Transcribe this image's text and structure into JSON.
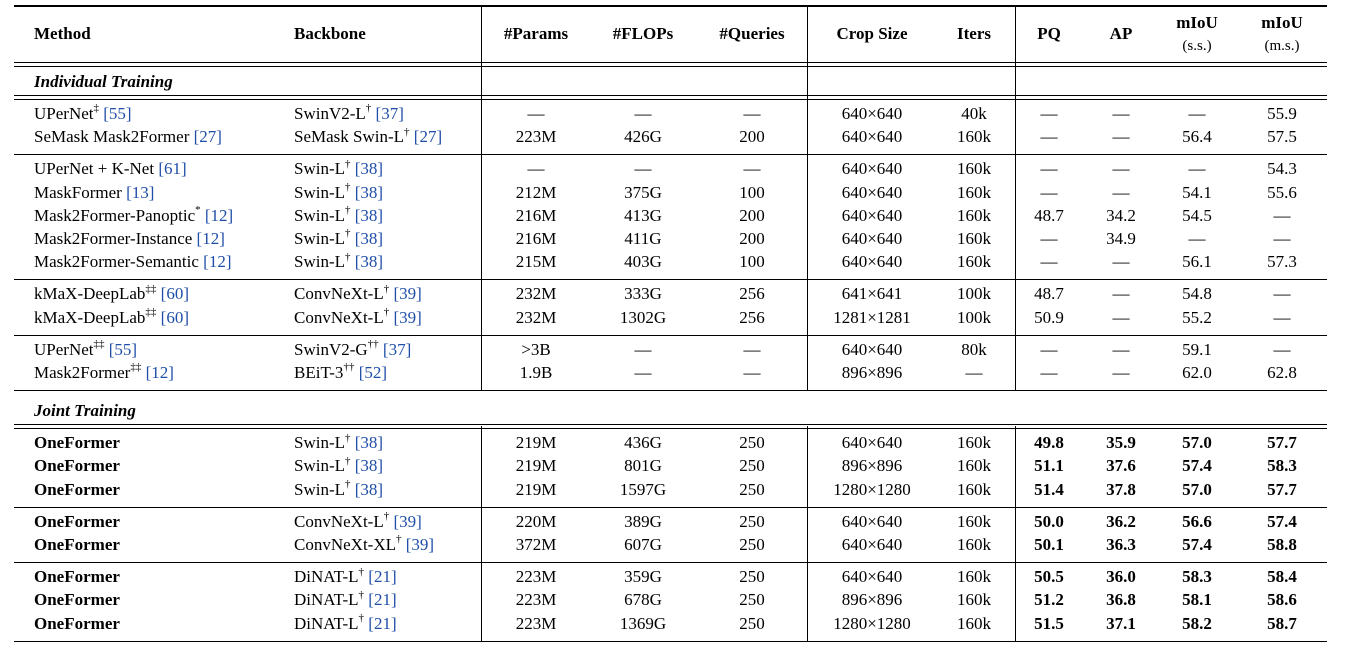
{
  "header": {
    "method": "Method",
    "backbone": "Backbone",
    "params": "#Params",
    "flops": "#FLOPs",
    "queries": "#Queries",
    "crop": "Crop Size",
    "iters": "Iters",
    "pq": "PQ",
    "ap": "AP",
    "miou_ss": "mIoU",
    "miou_ss_sub": "(s.s.)",
    "miou_ms": "mIoU",
    "miou_ms_sub": "(m.s.)"
  },
  "sections": [
    {
      "title": "Individual Training",
      "groups": [
        [
          {
            "method": "UPerNet",
            "method_sup": "‡",
            "method_ref": "[55]",
            "backbone": "SwinV2-L",
            "backbone_sup": "†",
            "backbone_ref": "[37]",
            "params": "—",
            "flops": "—",
            "queries": "—",
            "crop": "640×640",
            "iters": "40k",
            "pq": "—",
            "ap": "—",
            "miou_ss": "—",
            "miou_ms": "55.9"
          },
          {
            "method": "SeMask Mask2Former",
            "method_sup": "",
            "method_ref": "[27]",
            "backbone": "SeMask Swin-L",
            "backbone_sup": "†",
            "backbone_ref": "[27]",
            "params": "223M",
            "flops": "426G",
            "queries": "200",
            "crop": "640×640",
            "iters": "160k",
            "pq": "—",
            "ap": "—",
            "miou_ss": "56.4",
            "miou_ms": "57.5"
          }
        ],
        [
          {
            "method": "UPerNet + K-Net",
            "method_sup": "",
            "method_ref": "[61]",
            "backbone": "Swin-L",
            "backbone_sup": "†",
            "backbone_ref": "[38]",
            "params": "—",
            "flops": "—",
            "queries": "—",
            "crop": "640×640",
            "iters": "160k",
            "pq": "—",
            "ap": "—",
            "miou_ss": "—",
            "miou_ms": "54.3"
          },
          {
            "method": "MaskFormer",
            "method_sup": "",
            "method_ref": "[13]",
            "backbone": "Swin-L",
            "backbone_sup": "†",
            "backbone_ref": "[38]",
            "params": "212M",
            "flops": "375G",
            "queries": "100",
            "crop": "640×640",
            "iters": "160k",
            "pq": "—",
            "ap": "—",
            "miou_ss": "54.1",
            "miou_ms": "55.6"
          },
          {
            "method": "Mask2Former-Panoptic",
            "method_sup": "*",
            "method_ref": "[12]",
            "backbone": "Swin-L",
            "backbone_sup": "†",
            "backbone_ref": "[38]",
            "params": "216M",
            "flops": "413G",
            "queries": "200",
            "crop": "640×640",
            "iters": "160k",
            "pq": "48.7",
            "ap": "34.2",
            "miou_ss": "54.5",
            "miou_ms": "—"
          },
          {
            "method": "Mask2Former-Instance",
            "method_sup": "",
            "method_ref": "[12]",
            "backbone": "Swin-L",
            "backbone_sup": "†",
            "backbone_ref": "[38]",
            "params": "216M",
            "flops": "411G",
            "queries": "200",
            "crop": "640×640",
            "iters": "160k",
            "pq": "—",
            "ap": "34.9",
            "miou_ss": "—",
            "miou_ms": "—"
          },
          {
            "method": "Mask2Former-Semantic",
            "method_sup": "",
            "method_ref": "[12]",
            "backbone": "Swin-L",
            "backbone_sup": "†",
            "backbone_ref": "[38]",
            "params": "215M",
            "flops": "403G",
            "queries": "100",
            "crop": "640×640",
            "iters": "160k",
            "pq": "—",
            "ap": "—",
            "miou_ss": "56.1",
            "miou_ms": "57.3"
          }
        ],
        [
          {
            "method": "kMaX-DeepLab",
            "method_sup": "‡‡",
            "method_ref": "[60]",
            "backbone": "ConvNeXt-L",
            "backbone_sup": "†",
            "backbone_ref": "[39]",
            "params": "232M",
            "flops": "333G",
            "queries": "256",
            "crop": "641×641",
            "iters": "100k",
            "pq": "48.7",
            "ap": "—",
            "miou_ss": "54.8",
            "miou_ms": "—"
          },
          {
            "method": "kMaX-DeepLab",
            "method_sup": "‡‡",
            "method_ref": "[60]",
            "backbone": "ConvNeXt-L",
            "backbone_sup": "†",
            "backbone_ref": "[39]",
            "params": "232M",
            "flops": "1302G",
            "queries": "256",
            "crop": "1281×1281",
            "iters": "100k",
            "pq": "50.9",
            "ap": "—",
            "miou_ss": "55.2",
            "miou_ms": "—"
          }
        ],
        [
          {
            "method": "UPerNet",
            "method_sup": "‡‡",
            "method_ref": "[55]",
            "backbone": "SwinV2-G",
            "backbone_sup": "††",
            "backbone_ref": "[37]",
            "params": ">3B",
            "flops": "—",
            "queries": "—",
            "crop": "640×640",
            "iters": "80k",
            "pq": "—",
            "ap": "—",
            "miou_ss": "59.1",
            "miou_ms": "—"
          },
          {
            "method": "Mask2Former",
            "method_sup": "‡‡",
            "method_ref": "[12]",
            "backbone": "BEiT-3",
            "backbone_sup": "††",
            "backbone_ref": "[52]",
            "params": "1.9B",
            "flops": "—",
            "queries": "—",
            "crop": "896×896",
            "iters": "—",
            "pq": "—",
            "ap": "—",
            "miou_ss": "62.0",
            "miou_ms": "62.8"
          }
        ]
      ]
    },
    {
      "title": "Joint Training",
      "groups": [
        [
          {
            "method": "OneFormer",
            "bold": true,
            "backbone": "Swin-L",
            "backbone_sup": "†",
            "backbone_ref": "[38]",
            "params": "219M",
            "flops": "436G",
            "queries": "250",
            "crop": "640×640",
            "iters": "160k",
            "pq": "49.8",
            "ap": "35.9",
            "miou_ss": "57.0",
            "miou_ms": "57.7"
          },
          {
            "method": "OneFormer",
            "bold": true,
            "backbone": "Swin-L",
            "backbone_sup": "†",
            "backbone_ref": "[38]",
            "params": "219M",
            "flops": "801G",
            "queries": "250",
            "crop": "896×896",
            "iters": "160k",
            "pq": "51.1",
            "ap": "37.6",
            "miou_ss": "57.4",
            "miou_ms": "58.3"
          },
          {
            "method": "OneFormer",
            "bold": true,
            "backbone": "Swin-L",
            "backbone_sup": "†",
            "backbone_ref": "[38]",
            "params": "219M",
            "flops": "1597G",
            "queries": "250",
            "crop": "1280×1280",
            "iters": "160k",
            "pq": "51.4",
            "ap": "37.8",
            "miou_ss": "57.0",
            "miou_ms": "57.7"
          }
        ],
        [
          {
            "method": "OneFormer",
            "bold": true,
            "backbone": "ConvNeXt-L",
            "backbone_sup": "†",
            "backbone_ref": "[39]",
            "params": "220M",
            "flops": "389G",
            "queries": "250",
            "crop": "640×640",
            "iters": "160k",
            "pq": "50.0",
            "ap": "36.2",
            "miou_ss": "56.6",
            "miou_ms": "57.4"
          },
          {
            "method": "OneFormer",
            "bold": true,
            "backbone": "ConvNeXt-XL",
            "backbone_sup": "†",
            "backbone_ref": "[39]",
            "params": "372M",
            "flops": "607G",
            "queries": "250",
            "crop": "640×640",
            "iters": "160k",
            "pq": "50.1",
            "ap": "36.3",
            "miou_ss": "57.4",
            "miou_ms": "58.8"
          }
        ],
        [
          {
            "method": "OneFormer",
            "bold": true,
            "backbone": "DiNAT-L",
            "backbone_sup": "†",
            "backbone_ref": "[21]",
            "params": "223M",
            "flops": "359G",
            "queries": "250",
            "crop": "640×640",
            "iters": "160k",
            "pq": "50.5",
            "ap": "36.0",
            "miou_ss": "58.3",
            "miou_ms": "58.4"
          },
          {
            "method": "OneFormer",
            "bold": true,
            "backbone": "DiNAT-L",
            "backbone_sup": "†",
            "backbone_ref": "[21]",
            "params": "223M",
            "flops": "678G",
            "queries": "250",
            "crop": "896×896",
            "iters": "160k",
            "pq": "51.2",
            "ap": "36.8",
            "miou_ss": "58.1",
            "miou_ms": "58.6"
          },
          {
            "method": "OneFormer",
            "bold": true,
            "backbone": "DiNAT-L",
            "backbone_sup": "†",
            "backbone_ref": "[21]",
            "params": "223M",
            "flops": "1369G",
            "queries": "250",
            "crop": "1280×1280",
            "iters": "160k",
            "pq": "51.5",
            "ap": "37.1",
            "miou_ss": "58.2",
            "miou_ms": "58.7"
          }
        ]
      ]
    }
  ]
}
